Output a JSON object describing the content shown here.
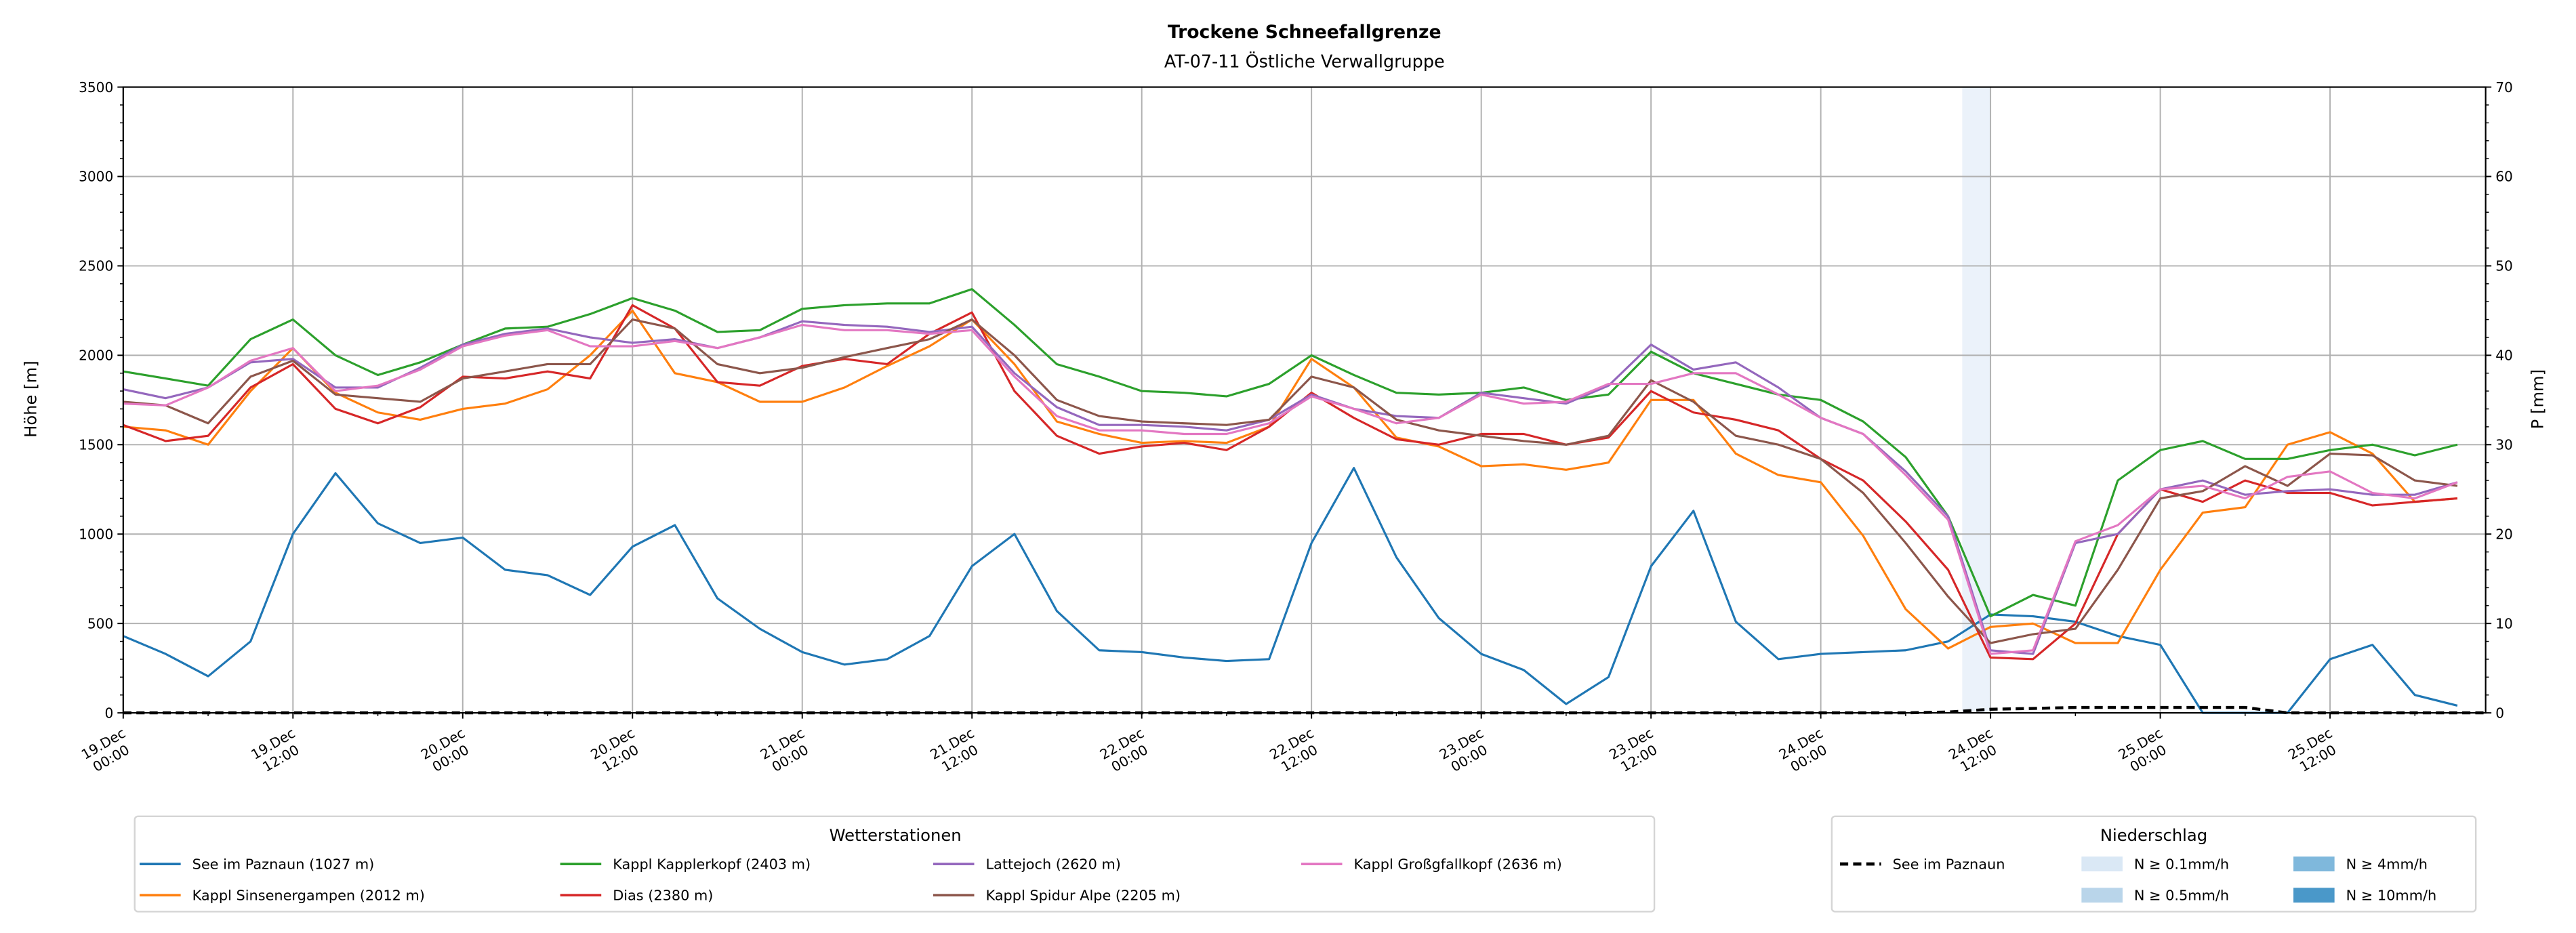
{
  "chart_data": {
    "type": "line",
    "title": "Trockene Schneefallgrenze",
    "subtitle": "AT-07-11 Östliche Verwallgruppe",
    "ylabel": "Höhe [m]",
    "ylabel_right": "P [mm]",
    "ylim": [
      0,
      3500
    ],
    "ylim_right": [
      0,
      70
    ],
    "yticks": [
      0,
      500,
      1000,
      1500,
      2000,
      2500,
      3000,
      3500
    ],
    "yticks_right": [
      0,
      10,
      20,
      30,
      40,
      50,
      60,
      70
    ],
    "x_unit": "hours since 19.Dec 00:00",
    "xlim_hours": [
      0,
      167
    ],
    "x_start_hour": 0,
    "x_step_hours": 3,
    "xticks": [
      {
        "hour": 0,
        "l1": "19.Dec",
        "l2": "00:00"
      },
      {
        "hour": 12,
        "l1": "19.Dec",
        "l2": "12:00"
      },
      {
        "hour": 24,
        "l1": "20.Dec",
        "l2": "00:00"
      },
      {
        "hour": 36,
        "l1": "20.Dec",
        "l2": "12:00"
      },
      {
        "hour": 48,
        "l1": "21.Dec",
        "l2": "00:00"
      },
      {
        "hour": 60,
        "l1": "21.Dec",
        "l2": "12:00"
      },
      {
        "hour": 72,
        "l1": "22.Dec",
        "l2": "00:00"
      },
      {
        "hour": 84,
        "l1": "22.Dec",
        "l2": "12:00"
      },
      {
        "hour": 96,
        "l1": "23.Dec",
        "l2": "00:00"
      },
      {
        "hour": 108,
        "l1": "23.Dec",
        "l2": "12:00"
      },
      {
        "hour": 120,
        "l1": "24.Dec",
        "l2": "00:00"
      },
      {
        "hour": 132,
        "l1": "24.Dec",
        "l2": "12:00"
      },
      {
        "hour": 144,
        "l1": "25.Dec",
        "l2": "00:00"
      },
      {
        "hour": 156,
        "l1": "25.Dec",
        "l2": "12:00"
      }
    ],
    "grid": true,
    "series": [
      {
        "name": "See im Paznaun (1027 m)",
        "color": "#1f77b4",
        "values": [
          430,
          330,
          205,
          400,
          1000,
          1340,
          1060,
          950,
          980,
          800,
          770,
          660,
          930,
          1050,
          640,
          470,
          340,
          270,
          300,
          430,
          820,
          1000,
          570,
          350,
          340,
          310,
          290,
          300,
          950,
          1370,
          870,
          530,
          330,
          240,
          50,
          200,
          820,
          1130,
          510,
          300,
          330,
          340,
          350,
          400,
          550,
          540,
          510,
          430,
          380,
          0,
          0,
          0,
          300,
          380,
          100,
          40
        ]
      },
      {
        "name": "Kappl Sinsenergampen (2012 m)",
        "color": "#ff7f0e",
        "values": [
          1600,
          1580,
          1500,
          1800,
          2040,
          1790,
          1680,
          1640,
          1700,
          1730,
          1810,
          2000,
          2250,
          1900,
          1850,
          1740,
          1740,
          1820,
          1940,
          2050,
          2200,
          1950,
          1630,
          1560,
          1510,
          1520,
          1510,
          1600,
          1980,
          1820,
          1540,
          1490,
          1380,
          1390,
          1360,
          1400,
          1750,
          1750,
          1450,
          1330,
          1290,
          990,
          580,
          360,
          480,
          500,
          390,
          390,
          800,
          1120,
          1150,
          1500,
          1570,
          1450,
          1180,
          1200
        ]
      },
      {
        "name": "Kappl Kapplerkopf (2403 m)",
        "color": "#2ca02c",
        "values": [
          1910,
          1870,
          1830,
          2090,
          2200,
          2000,
          1890,
          1960,
          2060,
          2150,
          2160,
          2230,
          2320,
          2250,
          2130,
          2140,
          2260,
          2280,
          2290,
          2290,
          2370,
          2170,
          1950,
          1880,
          1800,
          1790,
          1770,
          1840,
          2000,
          1890,
          1790,
          1780,
          1790,
          1820,
          1750,
          1780,
          2020,
          1900,
          1840,
          1780,
          1750,
          1630,
          1430,
          1100,
          540,
          660,
          600,
          1300,
          1470,
          1520,
          1420,
          1420,
          1470,
          1500,
          1440,
          1500
        ]
      },
      {
        "name": "Dias (2380 m)",
        "color": "#d62728",
        "values": [
          1610,
          1520,
          1550,
          1820,
          1950,
          1700,
          1620,
          1710,
          1880,
          1870,
          1910,
          1870,
          2280,
          2150,
          1850,
          1830,
          1940,
          1980,
          1950,
          2120,
          2240,
          1800,
          1550,
          1450,
          1490,
          1510,
          1470,
          1600,
          1790,
          1650,
          1530,
          1500,
          1560,
          1560,
          1500,
          1540,
          1800,
          1680,
          1640,
          1580,
          1420,
          1300,
          1070,
          800,
          310,
          300,
          500,
          1000,
          1250,
          1180,
          1300,
          1230,
          1230,
          1160,
          1180,
          1200
        ]
      },
      {
        "name": "Lattejoch (2620 m)",
        "color": "#9467bd",
        "values": [
          1810,
          1760,
          1820,
          1960,
          1980,
          1820,
          1820,
          1930,
          2060,
          2120,
          2150,
          2100,
          2070,
          2090,
          2040,
          2100,
          2190,
          2170,
          2160,
          2130,
          2160,
          1900,
          1710,
          1610,
          1610,
          1600,
          1580,
          1640,
          1780,
          1700,
          1660,
          1650,
          1790,
          1760,
          1730,
          1830,
          2060,
          1920,
          1960,
          1820,
          1650,
          1560,
          1350,
          1100,
          350,
          330,
          950,
          1000,
          1250,
          1300,
          1220,
          1240,
          1250,
          1220,
          1220,
          1290
        ]
      },
      {
        "name": "Kappl Spidur Alpe (2205 m)",
        "color": "#8c564b",
        "values": [
          1740,
          1720,
          1620,
          1880,
          1970,
          1780,
          1760,
          1740,
          1870,
          1910,
          1950,
          1950,
          2200,
          2150,
          1950,
          1900,
          1930,
          1990,
          2040,
          2090,
          2200,
          2000,
          1750,
          1660,
          1630,
          1620,
          1610,
          1640,
          1880,
          1820,
          1640,
          1580,
          1550,
          1520,
          1500,
          1550,
          1860,
          1740,
          1550,
          1500,
          1420,
          1230,
          950,
          650,
          390,
          440,
          470,
          800,
          1200,
          1240,
          1380,
          1270,
          1450,
          1440,
          1300,
          1270
        ]
      },
      {
        "name": "Kappl Großgfallkopf (2636 m)",
        "color": "#e377c2",
        "values": [
          1730,
          1720,
          1820,
          1970,
          2040,
          1800,
          1830,
          1920,
          2050,
          2110,
          2140,
          2050,
          2050,
          2080,
          2040,
          2100,
          2170,
          2140,
          2140,
          2120,
          2140,
          1880,
          1660,
          1580,
          1580,
          1560,
          1560,
          1620,
          1770,
          1700,
          1620,
          1650,
          1780,
          1730,
          1740,
          1840,
          1840,
          1900,
          1900,
          1780,
          1650,
          1560,
          1330,
          1080,
          330,
          350,
          960,
          1050,
          1250,
          1270,
          1200,
          1320,
          1350,
          1230,
          1200,
          1290
        ]
      }
    ],
    "legend_title": "Wetterstationen",
    "legend_order": [
      0,
      1,
      2,
      3,
      4,
      5,
      6
    ],
    "precipitation": {
      "legend_title": "Niederschlag",
      "name": "See im Paznaun",
      "color": "#000000",
      "axis": "right",
      "values": [
        0,
        0,
        0,
        0,
        0,
        0,
        0,
        0,
        0,
        0,
        0,
        0,
        0,
        0,
        0,
        0,
        0,
        0,
        0,
        0,
        0,
        0,
        0,
        0,
        0,
        0,
        0,
        0,
        0,
        0,
        0,
        0,
        0,
        0,
        0,
        0,
        0,
        0,
        0,
        0,
        0,
        0,
        0,
        0.1,
        0.4,
        0.5,
        0.6,
        0.6,
        0.6,
        0.6,
        0.6,
        0,
        0,
        0,
        0,
        0
      ],
      "intensity_bands": [
        {
          "start_hour": 130,
          "end_hour": 132,
          "class": 0
        }
      ],
      "classes": [
        {
          "label": "N ≥ 0.1mm/h",
          "color": "#dae8f5"
        },
        {
          "label": "N ≥ 0.5mm/h",
          "color": "#b9d5ea"
        },
        {
          "label": "N ≥ 4mm/h",
          "color": "#7fb8dc"
        },
        {
          "label": "N ≥ 10mm/h",
          "color": "#4a98c9"
        }
      ]
    }
  }
}
